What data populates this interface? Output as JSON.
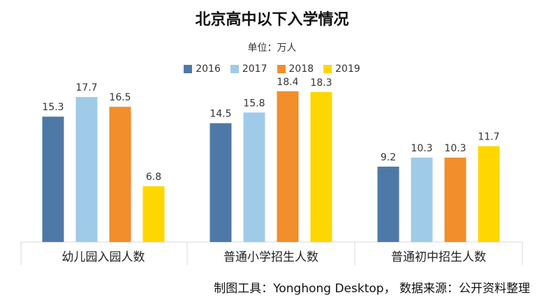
{
  "header": {
    "title": "北京高中以下入学情况",
    "subtitle": "单位：万人"
  },
  "footer": {
    "note": "制图工具：Yonghong Desktop， 数据来源：公开资料整理"
  },
  "colors": {
    "s2016": "#4e79a7",
    "s2017": "#a0cbe8",
    "s2018": "#f28e2b",
    "s2019": "#ffd700",
    "axis": "#d9d9d9"
  },
  "chart_data": {
    "type": "bar",
    "title": "北京高中以下入学情况",
    "subtitle": "单位：万人",
    "xlabel": "",
    "ylabel": "",
    "ylim": [
      0,
      20
    ],
    "grid": false,
    "legend_position": "top",
    "categories": [
      "幼儿园入园人数",
      "普通小学招生人数",
      "普通初中招生人数"
    ],
    "series": [
      {
        "name": "2016",
        "color": "#4e79a7",
        "values": [
          15.3,
          14.5,
          9.2
        ]
      },
      {
        "name": "2017",
        "color": "#a0cbe8",
        "values": [
          17.7,
          15.8,
          10.3
        ]
      },
      {
        "name": "2018",
        "color": "#f28e2b",
        "values": [
          16.5,
          18.4,
          10.3
        ]
      },
      {
        "name": "2019",
        "color": "#ffd700",
        "values": [
          6.8,
          18.3,
          11.7
        ]
      }
    ]
  }
}
